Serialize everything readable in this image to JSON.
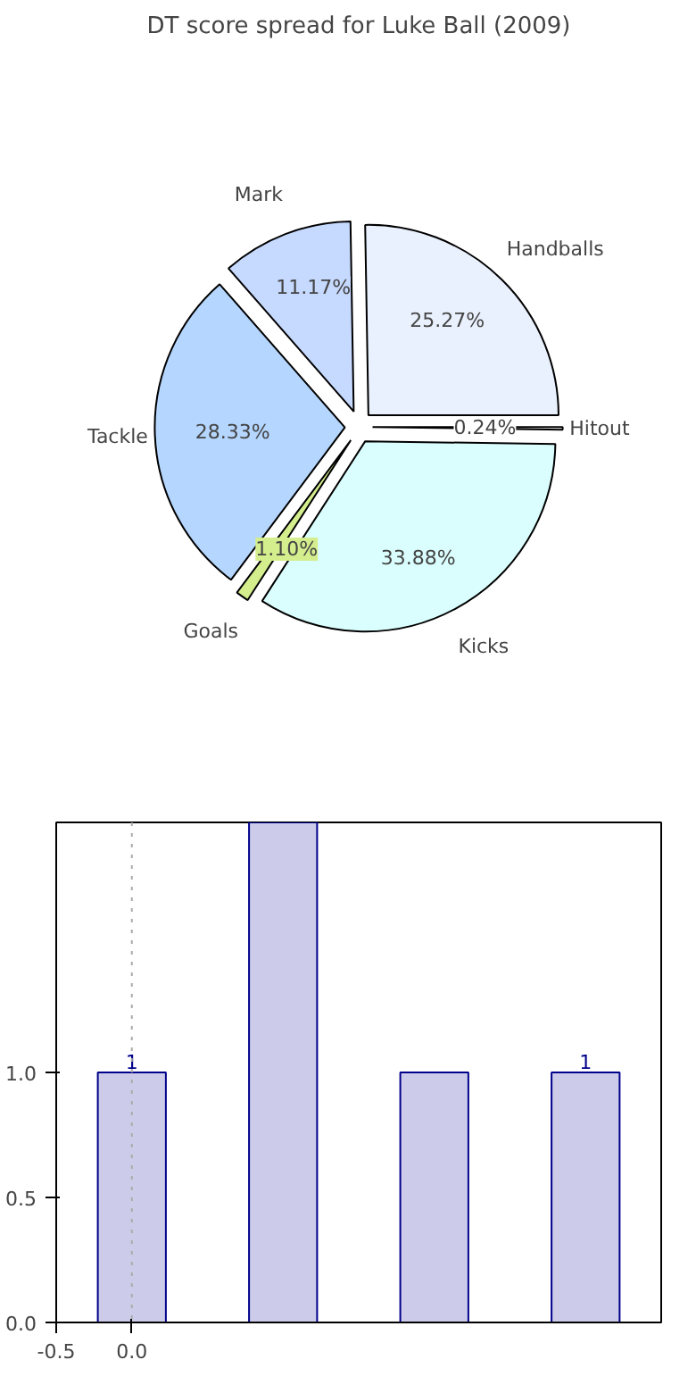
{
  "chart_data": [
    {
      "type": "pie",
      "title": "DT score spread for Luke Ball (2009)",
      "categories": [
        "Handballs",
        "Mark",
        "Tackle",
        "Goals",
        "Kicks",
        "Hitout"
      ],
      "values": [
        25.27,
        11.17,
        28.33,
        1.1,
        33.88,
        0.24
      ],
      "colors": [
        "#eaf1fe",
        "#c6d9fe",
        "#b5d6fe",
        "#d4ee8e",
        "#dafefe",
        "#ffffff"
      ],
      "value_labels": [
        "25.27%",
        "11.17%",
        "28.33%",
        "1.10%",
        "33.88%",
        "0.24%"
      ]
    },
    {
      "type": "bar",
      "x": [
        0,
        1,
        2,
        3
      ],
      "values": [
        1,
        2,
        1,
        1
      ],
      "color": "#ccccea",
      "value_labels": [
        "1",
        null,
        null,
        "1"
      ],
      "xlim": [
        -0.5,
        3.5
      ],
      "ylim": [
        0,
        2
      ],
      "xticks": [
        -0.5,
        {
          "value": 0,
          "label": "0.0"
        }
      ],
      "yticks": [
        {
          "value": 0,
          "label": "0.0"
        },
        {
          "value": 0.5,
          "label": "0.5"
        },
        {
          "value": 1.0,
          "label": "1.0"
        }
      ],
      "ref_lines": [
        {
          "axis": "x",
          "value": 0,
          "label": null,
          "color": "#aaaaaa",
          "line_style": "dotted"
        }
      ],
      "grid": false
    }
  ]
}
